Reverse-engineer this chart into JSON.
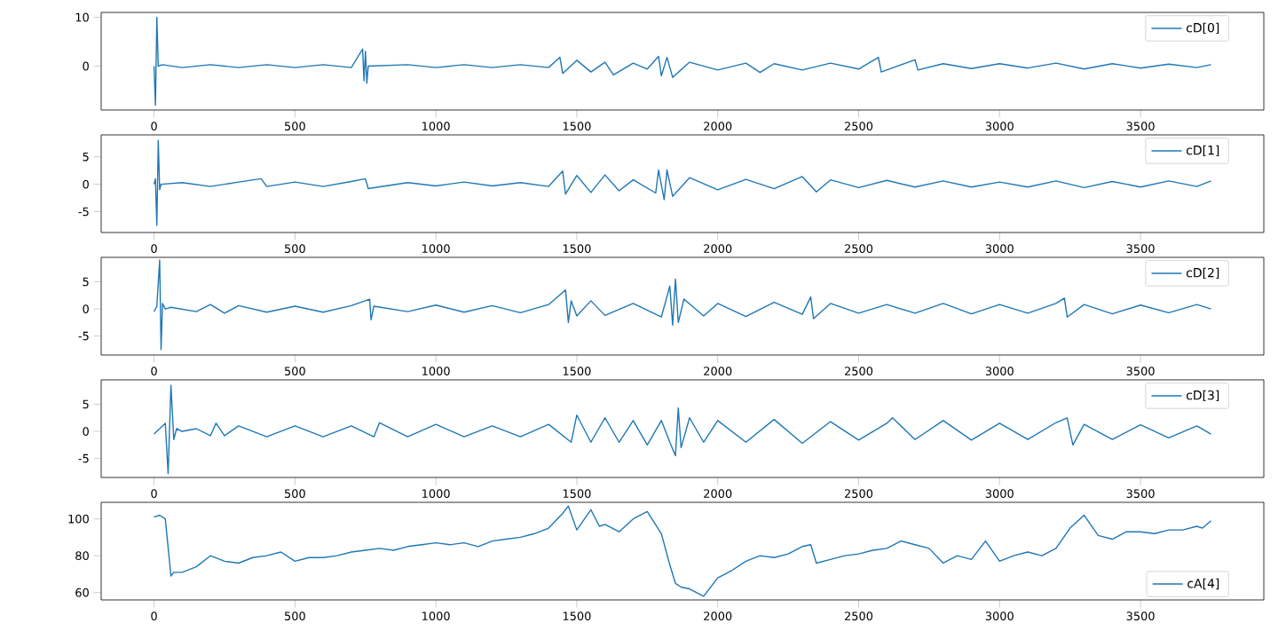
{
  "chart_data": [
    {
      "type": "line",
      "xlim": [
        -187.5,
        3937.5
      ],
      "xticks": [
        0,
        500,
        1000,
        1500,
        2000,
        2500,
        3000,
        3500
      ],
      "ylim": [
        -9,
        11
      ],
      "yticks": [
        0,
        10
      ],
      "legend": "top right",
      "marker": "none",
      "line_style": "solid",
      "grid": false,
      "x": [
        0,
        5,
        10,
        15,
        30,
        100,
        200,
        300,
        400,
        500,
        600,
        700,
        740,
        745,
        750,
        755,
        760,
        900,
        1000,
        1100,
        1200,
        1300,
        1400,
        1440,
        1450,
        1500,
        1550,
        1600,
        1630,
        1700,
        1750,
        1790,
        1800,
        1820,
        1840,
        1900,
        2000,
        2100,
        2150,
        2200,
        2300,
        2400,
        2500,
        2570,
        2580,
        2700,
        2710,
        2800,
        2900,
        3000,
        3100,
        3200,
        3300,
        3400,
        3500,
        3600,
        3700,
        3750
      ],
      "series": [
        {
          "name": "cD[0]",
          "color": "#1f77b4",
          "values": [
            0,
            -8,
            10,
            0,
            0.3,
            -0.3,
            0.3,
            -0.3,
            0.3,
            -0.3,
            0.3,
            -0.3,
            3.5,
            -3,
            3,
            -3.5,
            0,
            0.3,
            -0.3,
            0.3,
            -0.3,
            0.3,
            -0.3,
            1.8,
            -1.5,
            1.2,
            -1.2,
            0.8,
            -1.8,
            0.6,
            -0.6,
            2,
            -2,
            1.8,
            -2.3,
            0.8,
            -0.8,
            0.6,
            -1.3,
            0.5,
            -0.8,
            0.6,
            -0.6,
            1.8,
            -1.2,
            1.3,
            -0.8,
            0.5,
            -0.5,
            0.5,
            -0.4,
            0.6,
            -0.6,
            0.5,
            -0.4,
            0.4,
            -0.3,
            0.3
          ]
        }
      ]
    },
    {
      "type": "line",
      "xlim": [
        -187.5,
        3937.5
      ],
      "xticks": [
        0,
        500,
        1000,
        1500,
        2000,
        2500,
        3000,
        3500
      ],
      "ylim": [
        -8.8,
        9
      ],
      "yticks": [
        -5,
        0,
        5
      ],
      "legend": "top right",
      "marker": "none",
      "line_style": "solid",
      "grid": false,
      "x": [
        0,
        5,
        10,
        15,
        20,
        25,
        100,
        200,
        300,
        380,
        400,
        500,
        600,
        700,
        750,
        760,
        900,
        1000,
        1100,
        1200,
        1300,
        1400,
        1450,
        1460,
        1500,
        1550,
        1600,
        1650,
        1700,
        1780,
        1790,
        1810,
        1820,
        1840,
        1900,
        2000,
        2100,
        2200,
        2300,
        2350,
        2400,
        2500,
        2600,
        2700,
        2800,
        2900,
        3000,
        3100,
        3200,
        3300,
        3400,
        3500,
        3600,
        3700,
        3750
      ],
      "series": [
        {
          "name": "cD[1]",
          "color": "#1f77b4",
          "values": [
            0,
            1,
            -7.5,
            8,
            -1,
            0,
            0.3,
            -0.4,
            0.4,
            1,
            -0.4,
            0.4,
            -0.4,
            0.5,
            1,
            -0.8,
            0.3,
            -0.3,
            0.4,
            -0.3,
            0.3,
            -0.4,
            2.4,
            -1.8,
            1.6,
            -1.5,
            1.7,
            -1.2,
            0.8,
            -1.6,
            2.6,
            -2.8,
            2.6,
            -2.2,
            1.2,
            -1,
            0.9,
            -0.8,
            1.4,
            -1.4,
            0.8,
            -0.6,
            0.7,
            -0.5,
            0.6,
            -0.5,
            0.4,
            -0.5,
            0.6,
            -0.6,
            0.5,
            -0.5,
            0.6,
            -0.4,
            0.6
          ]
        }
      ]
    },
    {
      "type": "line",
      "xlim": [
        -187.5,
        3937.5
      ],
      "xticks": [
        0,
        500,
        1000,
        1500,
        2000,
        2500,
        3000,
        3500
      ],
      "ylim": [
        -8.5,
        9.5
      ],
      "yticks": [
        -5,
        0,
        5
      ],
      "legend": "top right",
      "marker": "none",
      "line_style": "solid",
      "grid": false,
      "x": [
        0,
        10,
        20,
        25,
        30,
        40,
        60,
        150,
        200,
        250,
        300,
        400,
        500,
        600,
        700,
        765,
        770,
        780,
        900,
        1000,
        1100,
        1200,
        1300,
        1400,
        1460,
        1470,
        1480,
        1500,
        1550,
        1600,
        1700,
        1800,
        1830,
        1840,
        1850,
        1860,
        1880,
        1950,
        2000,
        2100,
        2200,
        2300,
        2330,
        2340,
        2400,
        2500,
        2600,
        2700,
        2800,
        2900,
        3000,
        3100,
        3200,
        3230,
        3240,
        3300,
        3400,
        3500,
        3600,
        3700,
        3750
      ],
      "series": [
        {
          "name": "cD[2]",
          "color": "#1f77b4",
          "values": [
            -0.5,
            0.5,
            9,
            -7.5,
            1,
            0,
            0.3,
            -0.5,
            0.8,
            -0.8,
            0.6,
            -0.6,
            0.5,
            -0.6,
            0.6,
            1.8,
            -2,
            0.5,
            -0.5,
            0.7,
            -0.6,
            0.6,
            -0.7,
            0.8,
            3.5,
            -2.5,
            1.5,
            -1.3,
            1.5,
            -1.2,
            1,
            -1.5,
            4.2,
            -3,
            5.5,
            -2.5,
            1.8,
            -1.3,
            1,
            -1.4,
            1.2,
            -1,
            2.2,
            -1.8,
            1,
            -0.8,
            0.8,
            -0.8,
            1,
            -0.9,
            0.8,
            -0.8,
            1,
            2,
            -1.5,
            0.8,
            -0.9,
            0.7,
            -0.7,
            0.8,
            0
          ]
        }
      ]
    },
    {
      "type": "line",
      "xlim": [
        -187.5,
        3937.5
      ],
      "xticks": [
        0,
        500,
        1000,
        1500,
        2000,
        2500,
        3000,
        3500
      ],
      "ylim": [
        -8.5,
        9.5
      ],
      "yticks": [
        -5,
        0,
        5
      ],
      "legend": "top right",
      "marker": "none",
      "line_style": "solid",
      "grid": false,
      "x": [
        0,
        20,
        40,
        50,
        60,
        70,
        80,
        100,
        150,
        200,
        220,
        250,
        300,
        400,
        500,
        600,
        700,
        780,
        800,
        900,
        1000,
        1100,
        1200,
        1300,
        1400,
        1480,
        1500,
        1550,
        1600,
        1650,
        1700,
        1750,
        1800,
        1830,
        1850,
        1860,
        1870,
        1900,
        1950,
        2000,
        2100,
        2200,
        2300,
        2400,
        2500,
        2600,
        2620,
        2700,
        2800,
        2900,
        3000,
        3100,
        3200,
        3240,
        3260,
        3300,
        3400,
        3500,
        3600,
        3700,
        3750
      ],
      "series": [
        {
          "name": "cD[3]",
          "color": "#1f77b4",
          "values": [
            -0.5,
            0.5,
            1.5,
            -7.8,
            8.5,
            -1.5,
            0.5,
            0,
            0.5,
            -0.8,
            1.5,
            -0.8,
            1,
            -1,
            1,
            -1,
            1,
            -1,
            1.6,
            -1,
            1.3,
            -1,
            1,
            -1,
            1.3,
            -2,
            3,
            -2,
            2.5,
            -2,
            2,
            -2.5,
            2,
            -2,
            -4.5,
            4.3,
            -3,
            2.5,
            -2,
            2,
            -2,
            2.2,
            -2.2,
            1.8,
            -1.6,
            1.5,
            2.5,
            -1.5,
            2,
            -1.6,
            1.5,
            -1.5,
            1.6,
            2.5,
            -2.5,
            1.3,
            -1.5,
            1.2,
            -1.2,
            1,
            -0.5
          ]
        }
      ]
    },
    {
      "type": "line",
      "xlim": [
        -187.5,
        3937.5
      ],
      "xticks": [
        0,
        500,
        1000,
        1500,
        2000,
        2500,
        3000,
        3500
      ],
      "ylim": [
        56,
        109
      ],
      "yticks": [
        60,
        80,
        100
      ],
      "legend": "bottom right",
      "marker": "none",
      "line_style": "solid",
      "grid": false,
      "x": [
        0,
        20,
        40,
        60,
        70,
        100,
        150,
        200,
        250,
        300,
        350,
        400,
        450,
        500,
        550,
        600,
        650,
        700,
        750,
        800,
        850,
        900,
        950,
        1000,
        1050,
        1100,
        1150,
        1200,
        1250,
        1300,
        1350,
        1400,
        1450,
        1470,
        1500,
        1550,
        1580,
        1600,
        1650,
        1700,
        1750,
        1800,
        1830,
        1850,
        1870,
        1900,
        1950,
        2000,
        2050,
        2100,
        2150,
        2200,
        2250,
        2300,
        2330,
        2350,
        2400,
        2450,
        2500,
        2550,
        2600,
        2650,
        2700,
        2750,
        2800,
        2850,
        2900,
        2950,
        3000,
        3050,
        3100,
        3150,
        3200,
        3250,
        3300,
        3350,
        3400,
        3450,
        3500,
        3550,
        3600,
        3650,
        3700,
        3720,
        3750
      ],
      "series": [
        {
          "name": "cA[4]",
          "color": "#1f77b4",
          "values": [
            101,
            102,
            100,
            69,
            71,
            71,
            74,
            80,
            77,
            76,
            79,
            80,
            82,
            77,
            79,
            79,
            80,
            82,
            83,
            84,
            83,
            85,
            86,
            87,
            86,
            87,
            85,
            88,
            89,
            90,
            92,
            95,
            103,
            107,
            94,
            105,
            96,
            97,
            93,
            100,
            104,
            92,
            75,
            65,
            63,
            62,
            58,
            68,
            72,
            77,
            80,
            79,
            81,
            85,
            86,
            76,
            78,
            80,
            81,
            83,
            84,
            88,
            86,
            84,
            76,
            80,
            78,
            88,
            77,
            80,
            82,
            80,
            84,
            95,
            102,
            91,
            89,
            93,
            93,
            92,
            94,
            94,
            96,
            95,
            99
          ]
        }
      ]
    }
  ]
}
